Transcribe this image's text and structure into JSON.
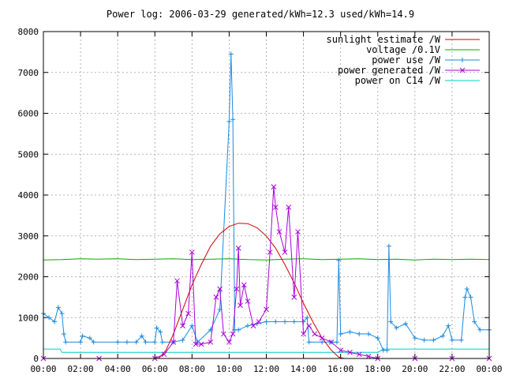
{
  "chart_data": {
    "type": "line",
    "title": "Power log: 2006-03-29 generated/kWh=12.3 used/kWh=14.9",
    "xlabel": "",
    "ylabel": "",
    "xlim": [
      0,
      24
    ],
    "ylim": [
      0,
      8000
    ],
    "x_ticks": [
      "00:00",
      "02:00",
      "04:00",
      "06:00",
      "08:00",
      "10:00",
      "12:00",
      "14:00",
      "16:00",
      "18:00",
      "20:00",
      "22:00",
      "00:00"
    ],
    "y_ticks": [
      "0",
      "1000",
      "2000",
      "3000",
      "4000",
      "5000",
      "6000",
      "7000",
      "8000"
    ],
    "grid": true,
    "legend_placement": "top-right",
    "series": [
      {
        "name": "sunlight estimate /W",
        "color": "#cc0000",
        "marker": "none",
        "points": [
          [
            6.2,
            0
          ],
          [
            6.6,
            200
          ],
          [
            7.0,
            600
          ],
          [
            7.5,
            1200
          ],
          [
            8.0,
            1800
          ],
          [
            8.5,
            2300
          ],
          [
            9.0,
            2750
          ],
          [
            9.5,
            3050
          ],
          [
            10.0,
            3230
          ],
          [
            10.5,
            3310
          ],
          [
            11.0,
            3300
          ],
          [
            11.5,
            3200
          ],
          [
            12.0,
            3000
          ],
          [
            12.5,
            2700
          ],
          [
            13.0,
            2300
          ],
          [
            13.5,
            1850
          ],
          [
            14.0,
            1350
          ],
          [
            14.5,
            900
          ],
          [
            15.0,
            500
          ],
          [
            15.5,
            200
          ],
          [
            15.9,
            30
          ],
          [
            16.2,
            0
          ]
        ]
      },
      {
        "name": "voltage /0.1V",
        "color": "#00aa00",
        "marker": "none",
        "points": [
          [
            0,
            2410
          ],
          [
            1,
            2420
          ],
          [
            2,
            2440
          ],
          [
            3,
            2430
          ],
          [
            4,
            2440
          ],
          [
            5,
            2420
          ],
          [
            6,
            2430
          ],
          [
            7,
            2440
          ],
          [
            8,
            2420
          ],
          [
            9,
            2430
          ],
          [
            10,
            2440
          ],
          [
            11,
            2420
          ],
          [
            12,
            2410
          ],
          [
            13,
            2430
          ],
          [
            14,
            2440
          ],
          [
            15,
            2420
          ],
          [
            16,
            2430
          ],
          [
            17,
            2440
          ],
          [
            18,
            2420
          ],
          [
            19,
            2430
          ],
          [
            20,
            2410
          ],
          [
            21,
            2430
          ],
          [
            22,
            2420
          ],
          [
            23,
            2430
          ],
          [
            24,
            2420
          ]
        ]
      },
      {
        "name": "power use /W",
        "color": "#1a8ae0",
        "marker": "plus",
        "points": [
          [
            0,
            1100
          ],
          [
            0.3,
            1000
          ],
          [
            0.6,
            900
          ],
          [
            0.8,
            1250
          ],
          [
            1.0,
            1100
          ],
          [
            1.1,
            600
          ],
          [
            1.2,
            400
          ],
          [
            2.0,
            400
          ],
          [
            2.1,
            550
          ],
          [
            2.5,
            500
          ],
          [
            2.7,
            400
          ],
          [
            4.0,
            400
          ],
          [
            4.5,
            400
          ],
          [
            5.0,
            400
          ],
          [
            5.3,
            550
          ],
          [
            5.5,
            400
          ],
          [
            6.0,
            400
          ],
          [
            6.1,
            750
          ],
          [
            6.3,
            650
          ],
          [
            6.4,
            400
          ],
          [
            7.0,
            400
          ],
          [
            7.5,
            450
          ],
          [
            8.0,
            800
          ],
          [
            8.3,
            400
          ],
          [
            9.0,
            700
          ],
          [
            9.5,
            1200
          ],
          [
            10.0,
            5800
          ],
          [
            10.1,
            7450
          ],
          [
            10.2,
            5850
          ],
          [
            10.3,
            700
          ],
          [
            10.5,
            700
          ],
          [
            11.0,
            800
          ],
          [
            11.5,
            850
          ],
          [
            12.0,
            900
          ],
          [
            12.5,
            900
          ],
          [
            13.0,
            900
          ],
          [
            13.5,
            900
          ],
          [
            14.0,
            900
          ],
          [
            14.2,
            1000
          ],
          [
            14.3,
            400
          ],
          [
            15.0,
            400
          ],
          [
            15.5,
            400
          ],
          [
            15.8,
            400
          ],
          [
            15.9,
            2400
          ],
          [
            16.0,
            600
          ],
          [
            16.5,
            650
          ],
          [
            17.0,
            600
          ],
          [
            17.5,
            600
          ],
          [
            18.0,
            500
          ],
          [
            18.3,
            200
          ],
          [
            18.5,
            200
          ],
          [
            18.6,
            2750
          ],
          [
            18.7,
            900
          ],
          [
            19.0,
            750
          ],
          [
            19.5,
            850
          ],
          [
            20.0,
            500
          ],
          [
            20.5,
            450
          ],
          [
            21.0,
            450
          ],
          [
            21.5,
            550
          ],
          [
            21.8,
            800
          ],
          [
            22.0,
            450
          ],
          [
            22.5,
            450
          ],
          [
            22.7,
            1500
          ],
          [
            22.8,
            1700
          ],
          [
            23.0,
            1500
          ],
          [
            23.2,
            900
          ],
          [
            23.5,
            700
          ],
          [
            24.0,
            700
          ]
        ]
      },
      {
        "name": "power generated /W",
        "color": "#aa00dd",
        "marker": "x",
        "points": [
          [
            0,
            0
          ],
          [
            3,
            0
          ],
          [
            6.0,
            0
          ],
          [
            6.5,
            100
          ],
          [
            7.0,
            400
          ],
          [
            7.2,
            1900
          ],
          [
            7.5,
            800
          ],
          [
            7.8,
            1100
          ],
          [
            8.0,
            2600
          ],
          [
            8.2,
            350
          ],
          [
            8.5,
            350
          ],
          [
            9.0,
            400
          ],
          [
            9.3,
            1500
          ],
          [
            9.5,
            1700
          ],
          [
            9.7,
            600
          ],
          [
            10.0,
            400
          ],
          [
            10.2,
            600
          ],
          [
            10.4,
            1700
          ],
          [
            10.5,
            2700
          ],
          [
            10.6,
            1300
          ],
          [
            10.8,
            1800
          ],
          [
            11.0,
            1400
          ],
          [
            11.3,
            800
          ],
          [
            11.6,
            900
          ],
          [
            12.0,
            1200
          ],
          [
            12.2,
            2600
          ],
          [
            12.4,
            4200
          ],
          [
            12.5,
            3700
          ],
          [
            12.7,
            3100
          ],
          [
            13.0,
            2600
          ],
          [
            13.2,
            3700
          ],
          [
            13.5,
            1500
          ],
          [
            13.7,
            3100
          ],
          [
            14.0,
            600
          ],
          [
            14.3,
            800
          ],
          [
            14.6,
            600
          ],
          [
            15.0,
            500
          ],
          [
            15.5,
            400
          ],
          [
            16.0,
            200
          ],
          [
            16.5,
            150
          ],
          [
            17.0,
            100
          ],
          [
            17.5,
            50
          ],
          [
            18.0,
            0
          ],
          [
            20,
            0
          ],
          [
            22,
            0
          ],
          [
            24,
            0
          ]
        ]
      },
      {
        "name": "power on C14 /W",
        "color": "#00cccc",
        "marker": "none",
        "points": [
          [
            0,
            230
          ],
          [
            0.9,
            230
          ],
          [
            1.0,
            150
          ],
          [
            4.0,
            150
          ],
          [
            6.0,
            150
          ],
          [
            8.0,
            150
          ],
          [
            10.0,
            150
          ],
          [
            12.0,
            150
          ],
          [
            14.0,
            150
          ],
          [
            16.0,
            150
          ],
          [
            18.0,
            150
          ],
          [
            18.3,
            230
          ],
          [
            20.0,
            230
          ],
          [
            22.0,
            230
          ],
          [
            24.0,
            230
          ]
        ]
      }
    ]
  }
}
